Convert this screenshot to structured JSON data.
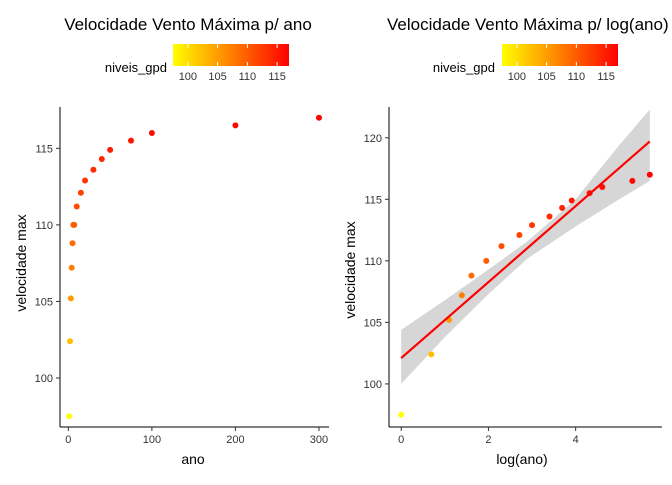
{
  "chart_data": [
    {
      "type": "scatter",
      "title": "Velocidade Vento Máxima p/ ano",
      "xlabel": "ano",
      "ylabel": "velocidade max",
      "xlim": [
        -10,
        312
      ],
      "ylim": [
        96.8,
        117.7
      ],
      "x_ticks": [
        0,
        100,
        200,
        300
      ],
      "x_tick_labels": [
        "0",
        "100",
        "200",
        "300"
      ],
      "y_ticks": [
        100,
        105,
        110,
        115
      ],
      "y_tick_labels": [
        "100",
        "105",
        "110",
        "115"
      ],
      "grid": false,
      "color_by": "niveis_gpd",
      "series": [
        {
          "x": [
            1,
            2,
            3,
            4,
            5,
            6,
            7,
            10,
            15,
            20,
            30,
            40,
            50,
            75,
            100,
            200,
            300
          ],
          "y": [
            97.5,
            102.4,
            105.2,
            107.2,
            108.8,
            110.0,
            110.0,
            111.2,
            112.1,
            112.9,
            113.6,
            114.3,
            114.9,
            115.5,
            116.0,
            116.5,
            117.0
          ]
        }
      ]
    },
    {
      "type": "scatter",
      "title": "Velocidade Vento Máxima p/ log(ano)",
      "xlabel": "log(ano)",
      "ylabel": "velocidade max",
      "xlim": [
        -0.28,
        5.98
      ],
      "ylim": [
        96.5,
        122.5
      ],
      "x_ticks": [
        0,
        2,
        4
      ],
      "x_tick_labels": [
        "0",
        "2",
        "4"
      ],
      "y_ticks": [
        100,
        105,
        110,
        115,
        120
      ],
      "y_tick_labels": [
        "100",
        "105",
        "110",
        "115",
        "120"
      ],
      "grid": false,
      "color_by": "niveis_gpd",
      "series": [
        {
          "x": [
            0,
            0.69,
            1.1,
            1.39,
            1.61,
            1.95,
            2.3,
            2.71,
            3.0,
            3.4,
            3.69,
            3.91,
            4.32,
            4.61,
            5.3,
            5.7
          ],
          "y": [
            97.5,
            102.4,
            105.2,
            107.2,
            108.8,
            110.0,
            111.2,
            112.1,
            112.9,
            113.6,
            114.3,
            114.9,
            115.5,
            116.0,
            116.5,
            117.0
          ]
        }
      ],
      "fit_line": {
        "x": [
          0,
          5.7
        ],
        "y": [
          102.1,
          119.7
        ]
      },
      "confidence_band": {
        "x": [
          0,
          1,
          2,
          2.9,
          4,
          5,
          5.7
        ],
        "lower": [
          100.0,
          103.8,
          107.3,
          110.2,
          112.8,
          115.0,
          116.5
        ],
        "upper": [
          104.4,
          106.8,
          109.3,
          111.6,
          115.0,
          119.4,
          122.3
        ]
      }
    }
  ],
  "legend": {
    "title": "niveis_gpd",
    "placement": "top",
    "ticks": [
      100,
      105,
      110,
      115
    ],
    "tick_labels": [
      "100",
      "105",
      "110",
      "115"
    ],
    "range": [
      97.5,
      117.0
    ],
    "low_color": "#ffff00",
    "high_color": "#ff0000"
  }
}
